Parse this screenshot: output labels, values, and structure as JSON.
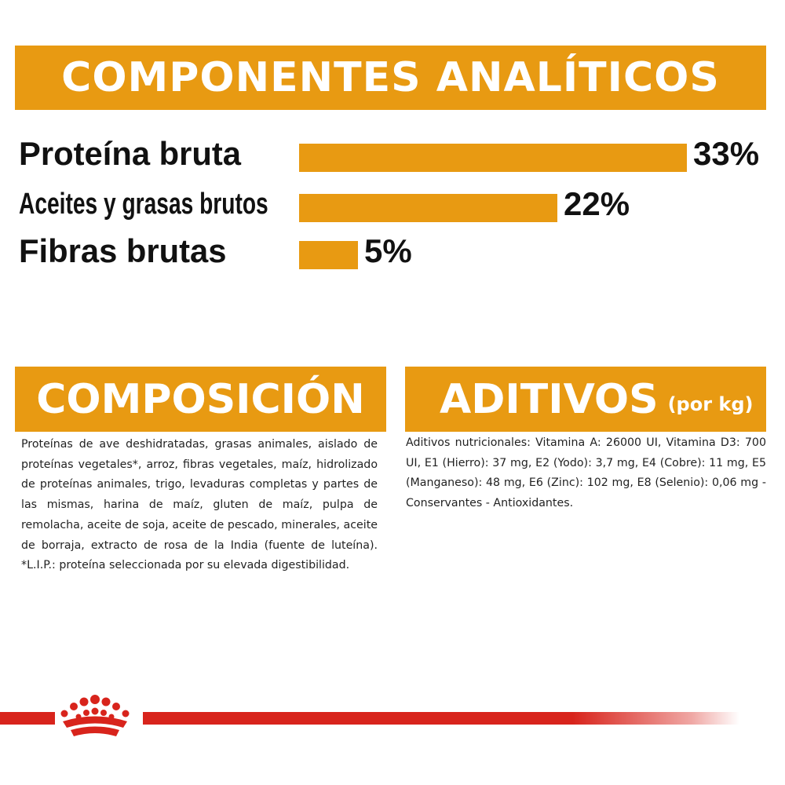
{
  "colors": {
    "accent": "#E89A12",
    "brand": "#D8241C"
  },
  "analytical": {
    "title": "COMPONENTES ANALÍTICOS",
    "rows": [
      {
        "label": "Proteína bruta",
        "value": 33,
        "display": "33%"
      },
      {
        "label": "Aceites y grasas brutos",
        "value": 22,
        "display": "22%"
      },
      {
        "label": "Fibras brutas",
        "value": 5,
        "display": "5%"
      }
    ]
  },
  "composition": {
    "title": "COMPOSICIÓN",
    "text": "Proteínas de ave deshidratadas, grasas animales, aislado de proteínas vegetales*, arroz, fibras vegetales, maíz, hidrolizado de proteínas animales, trigo, levaduras completas y partes de las mismas, harina de maíz, gluten de maíz, pulpa de remolacha, aceite de soja, aceite de pescado, minerales, aceite de borraja, extracto de rosa de la India (fuente de luteína). *L.I.P.: proteína seleccionada por su elevada digestibilidad."
  },
  "additives": {
    "title": "ADITIVOS",
    "title_suffix": "(por kg)",
    "text": "Aditivos nutricionales: Vitamina A: 26000 UI, Vitamina D3: 700 UI, E1 (Hierro): 37 mg, E2 (Yodo): 3,7 mg, E4 (Cobre): 11 mg, E5 (Manganeso): 48 mg, E6 (Zinc): 102 mg, E8 (Selenio): 0,06 mg - Conservantes - Antioxidantes."
  },
  "footer": {
    "logo_icon": "crown-icon"
  }
}
